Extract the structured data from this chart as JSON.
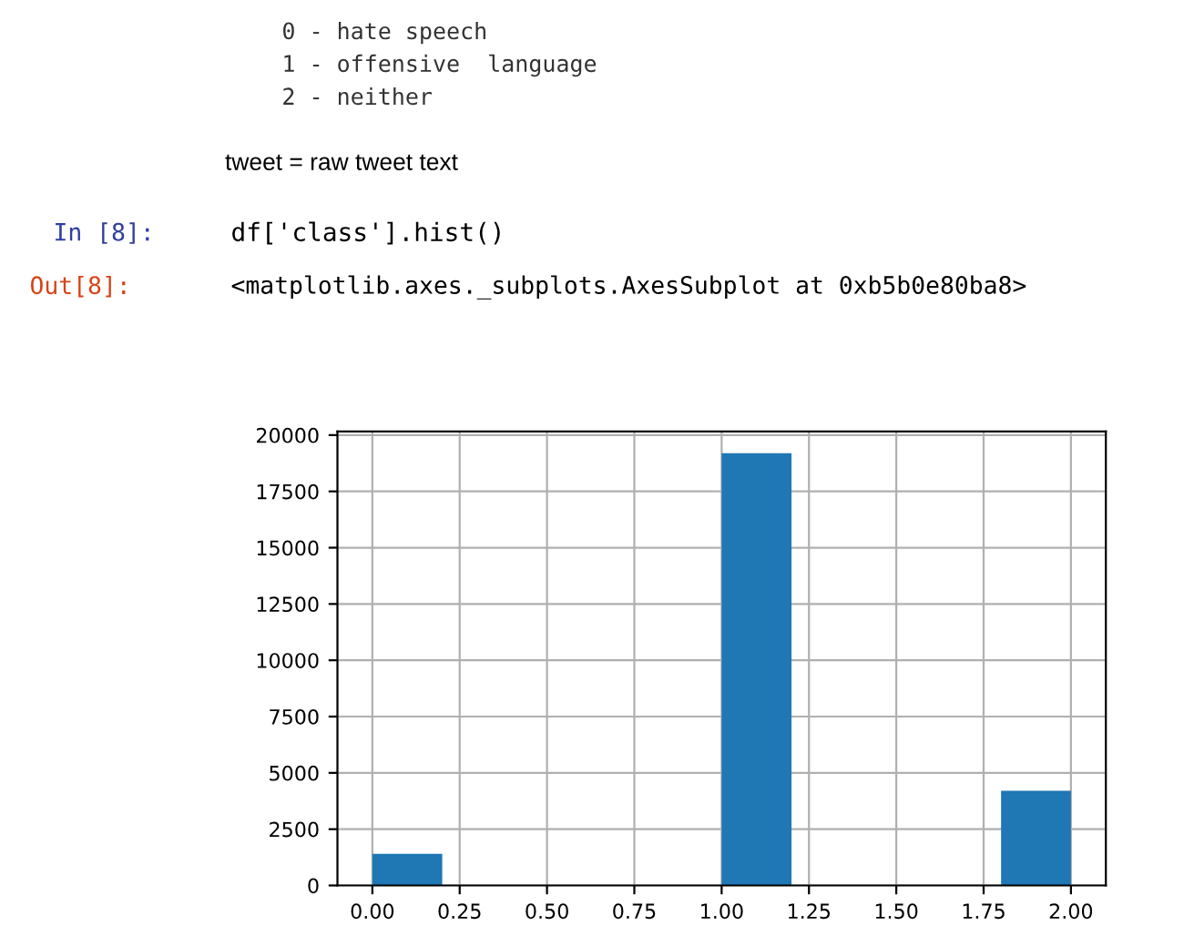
{
  "chart_data": {
    "type": "histogram",
    "bins": [
      0.0,
      0.2,
      0.4,
      0.6,
      0.8,
      1.0,
      1.2,
      1.4,
      1.6,
      1.8,
      2.0
    ],
    "values": [
      1400,
      0,
      0,
      0,
      0,
      19200,
      0,
      0,
      0,
      4200
    ],
    "color": "#1f77b4",
    "xlim": [
      -0.1,
      2.1
    ],
    "xticks": [
      {
        "value": 0,
        "label": "0.00"
      },
      {
        "value": 0.25,
        "label": "0.25"
      },
      {
        "value": 0.5,
        "label": "0.50"
      },
      {
        "value": 0.75,
        "label": "0.75"
      },
      {
        "value": 1,
        "label": "1.00"
      },
      {
        "value": 1.25,
        "label": "1.25"
      },
      {
        "value": 1.5,
        "label": "1.50"
      },
      {
        "value": 1.75,
        "label": "1.75"
      },
      {
        "value": 2,
        "label": "2.00"
      }
    ],
    "ylim": [
      0,
      20160
    ],
    "yticks": [
      0,
      2500,
      5000,
      7500,
      10000,
      12500,
      15000,
      17500,
      20000
    ],
    "grid": true,
    "annotations": [
      "0 - hate speech",
      "1 - offensive  language",
      "2 - neither",
      "tweet = raw tweet text",
      "In [8]:",
      "df['class'].hist()",
      "Out[8]:",
      "<matplotlib.axes._subplots.AxesSubplot at 0xb5b0e80ba8>"
    ]
  }
}
